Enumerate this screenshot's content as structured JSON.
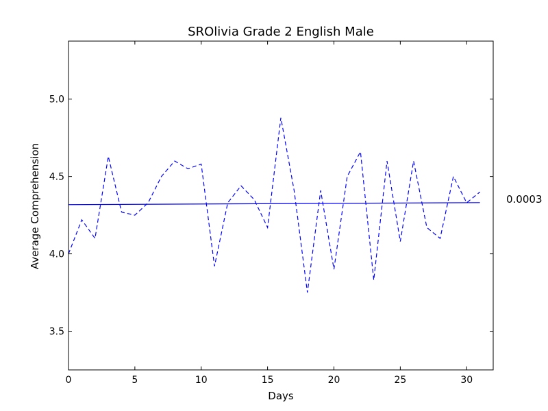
{
  "chart_data": {
    "type": "line",
    "title": "SROlivia Grade 2 English Male",
    "xlabel": "Days",
    "ylabel": "Average Comprehension",
    "xlim": [
      0,
      32
    ],
    "ylim": [
      3.25,
      5.375
    ],
    "xticks": [
      0,
      5,
      10,
      15,
      20,
      25,
      30
    ],
    "yticks": [
      3.5,
      4.0,
      4.5,
      5.0
    ],
    "grid": false,
    "series": [
      {
        "style": "dashed",
        "color": "#0000ff",
        "x": [
          0,
          1,
          2,
          3,
          4,
          5,
          6,
          7,
          8,
          9,
          10,
          11,
          12,
          13,
          14,
          15,
          16,
          17,
          18,
          19,
          20,
          21,
          22,
          23,
          24,
          25,
          26,
          27,
          28,
          29,
          30,
          31
        ],
        "y": [
          4.0,
          4.22,
          4.1,
          4.63,
          4.27,
          4.25,
          4.33,
          4.5,
          4.6,
          4.55,
          4.58,
          3.92,
          4.33,
          4.44,
          4.35,
          4.17,
          4.88,
          4.41,
          3.75,
          4.41,
          3.9,
          4.5,
          4.66,
          3.83,
          4.6,
          4.08,
          4.6,
          4.17,
          4.1,
          4.5,
          4.33,
          4.4
        ]
      },
      {
        "style": "solid",
        "color": "#0000ff",
        "x": [
          0,
          31
        ],
        "y": [
          4.318,
          4.331
        ]
      }
    ],
    "annotation": "0.0003"
  }
}
